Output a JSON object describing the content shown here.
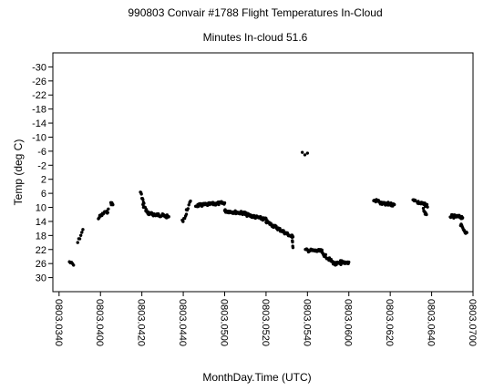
{
  "chart_data": {
    "type": "scatter",
    "title": "990803 Convair #1788 Flight Temperatures In-Cloud",
    "subtitle": "Minutes In-cloud 51.6",
    "xlabel": "MonthDay.Time (UTC)",
    "ylabel": "Temp (deg C)",
    "x_ticks": [
      "0803.0340",
      "0803.0400",
      "0803.0420",
      "0803.0440",
      "0803.0500",
      "0803.0520",
      "0803.0540",
      "0803.0600",
      "0803.0620",
      "0803.0640",
      "0803.0700"
    ],
    "y_ticks": [
      -30,
      -26,
      -22,
      -18,
      -14,
      -10,
      -6,
      -2,
      2,
      6,
      10,
      14,
      18,
      22,
      26,
      30
    ],
    "y_inverted": true,
    "x_unit": "minutes since 0803.0340",
    "xlim": [
      -3,
      200
    ],
    "ylim": [
      -34,
      34
    ],
    "grid": false,
    "marker_color": "#000000",
    "segments": [
      {
        "x": [
          5.0,
          7.0
        ],
        "y": [
          25.5,
          26.5
        ],
        "n": 5
      },
      {
        "x": [
          9.0,
          11.5
        ],
        "y": [
          20.0,
          16.5
        ],
        "n": 6
      },
      {
        "x": [
          19.0,
          22.0
        ],
        "y": [
          13.0,
          11.5
        ],
        "n": 10
      },
      {
        "x": [
          23.0,
          23.8
        ],
        "y": [
          11.5,
          10.8
        ],
        "n": 4
      },
      {
        "x": [
          25.0,
          26.0
        ],
        "y": [
          8.7,
          9.2
        ],
        "n": 5
      },
      {
        "x": [
          39.3,
          41.0
        ],
        "y": [
          5.5,
          9.0
        ],
        "n": 8
      },
      {
        "x": [
          40.5,
          43.0
        ],
        "y": [
          9.5,
          11.5
        ],
        "n": 10
      },
      {
        "x": [
          43.0,
          50.0
        ],
        "y": [
          11.8,
          12.3
        ],
        "n": 34
      },
      {
        "x": [
          50.0,
          53.0
        ],
        "y": [
          12.3,
          12.7
        ],
        "n": 12
      },
      {
        "x": [
          59.5,
          61.5
        ],
        "y": [
          14.0,
          12.0
        ],
        "n": 6
      },
      {
        "x": [
          61.5,
          63.5
        ],
        "y": [
          11.0,
          8.5
        ],
        "n": 6
      },
      {
        "x": [
          66.0,
          80.0
        ],
        "y": [
          9.5,
          8.7
        ],
        "n": 55
      },
      {
        "x": [
          80.0,
          90.0
        ],
        "y": [
          11.0,
          11.7
        ],
        "n": 40
      },
      {
        "x": [
          90.0,
          100.0
        ],
        "y": [
          12.0,
          13.5
        ],
        "n": 40
      },
      {
        "x": [
          100.0,
          110.0
        ],
        "y": [
          14.0,
          17.5
        ],
        "n": 40
      },
      {
        "x": [
          110.0,
          113.0
        ],
        "y": [
          17.5,
          18.5
        ],
        "n": 12
      },
      {
        "x": [
          112.5,
          113.0
        ],
        "y": [
          17.5,
          21.5
        ],
        "n": 6
      },
      {
        "x": [
          117.5,
          120.0
        ],
        "y": [
          -5.3,
          -5.3
        ],
        "n": 3
      },
      {
        "x": [
          119.0,
          127.0
        ],
        "y": [
          22.2,
          22.5
        ],
        "n": 28
      },
      {
        "x": [
          127.0,
          134.0
        ],
        "y": [
          23.0,
          26.5
        ],
        "n": 28
      },
      {
        "x": [
          134.0,
          138.0
        ],
        "y": [
          26.0,
          25.8
        ],
        "n": 14
      },
      {
        "x": [
          136.0,
          140.0
        ],
        "y": [
          25.5,
          25.8
        ],
        "n": 16
      },
      {
        "x": [
          152.0,
          155.0
        ],
        "y": [
          8.0,
          8.3
        ],
        "n": 10
      },
      {
        "x": [
          155.0,
          159.0
        ],
        "y": [
          8.8,
          9.3
        ],
        "n": 16
      },
      {
        "x": [
          159.0,
          162.0
        ],
        "y": [
          9.0,
          9.3
        ],
        "n": 12
      },
      {
        "x": [
          171.0,
          172.0
        ],
        "y": [
          7.5,
          8.0
        ],
        "n": 4
      },
      {
        "x": [
          173.0,
          178.0
        ],
        "y": [
          8.5,
          9.5
        ],
        "n": 20
      },
      {
        "x": [
          176.0,
          177.5
        ],
        "y": [
          10.5,
          12.5
        ],
        "n": 8
      },
      {
        "x": [
          189.0,
          195.0
        ],
        "y": [
          12.5,
          12.8
        ],
        "n": 26
      },
      {
        "x": [
          194.0,
          197.0
        ],
        "y": [
          15.0,
          17.5
        ],
        "n": 12
      }
    ]
  }
}
